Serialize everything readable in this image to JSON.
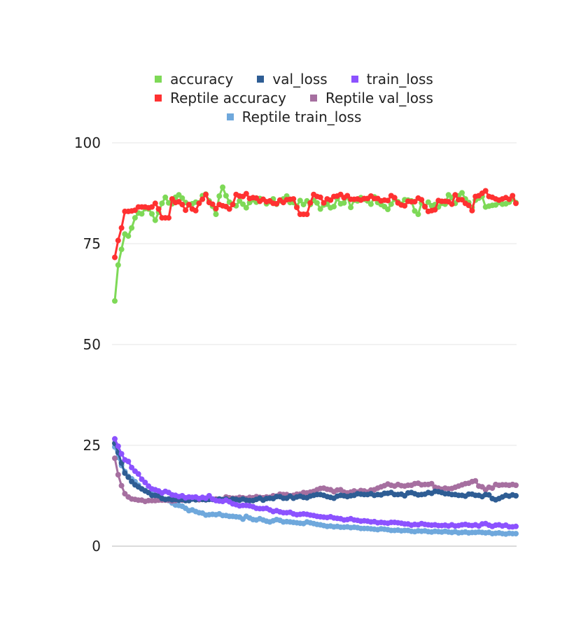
{
  "chart_data": {
    "type": "line",
    "title": "",
    "xlabel": "",
    "ylabel": "",
    "ylim": [
      0,
      100
    ],
    "yticks": [
      0,
      25,
      50,
      75,
      100
    ],
    "x_range": [
      1,
      120
    ],
    "grid": "horizontal",
    "legend": "top",
    "series": [
      {
        "name": "accuracy",
        "color": "#7ed957",
        "values": [
          60.8,
          69.7,
          73.6,
          77.4,
          76.9,
          78.9,
          81.4,
          82.6,
          82.4,
          83.7,
          83.6,
          82.4,
          80.8,
          82.8,
          85.0,
          86.5,
          85.1,
          84.9,
          86.5,
          87.1,
          86.3,
          85.2,
          84.6,
          84.9,
          85.3,
          85.1,
          86.9,
          87.3,
          85.6,
          84.3,
          82.3,
          86.8,
          89.0,
          86.9,
          85.3,
          84.8,
          84.4,
          85.6,
          84.8,
          83.9,
          85.2,
          85.9,
          85.3,
          86.2,
          86.0,
          84.9,
          85.4,
          86.1,
          84.8,
          85.6,
          86.1,
          86.8,
          85.2,
          85.2,
          84.3,
          85.7,
          84.7,
          85.6,
          84.7,
          85.7,
          85.1,
          83.6,
          84.6,
          84.8,
          83.9,
          84.2,
          86.2,
          84.9,
          85.1,
          86.7,
          84.0,
          85.8,
          85.6,
          86.4,
          86.0,
          85.6,
          84.8,
          86.6,
          85.2,
          84.7,
          84.2,
          83.5,
          84.8,
          86.0,
          85.4,
          84.8,
          85.9,
          85.8,
          85.6,
          83.1,
          82.3,
          85.1,
          84.1,
          85.3,
          84.4,
          84.7,
          84.1,
          85.0,
          84.8,
          87.1,
          86.4,
          85.0,
          86.9,
          87.6,
          86.1,
          85.2,
          84.0,
          85.8,
          86.3,
          86.7,
          84.1,
          84.3,
          84.5,
          84.6,
          85.2,
          84.8,
          84.9,
          85.3,
          86.1,
          85.2
        ]
      },
      {
        "name": "val_loss",
        "color": "#2e5d94",
        "values": [
          25.5,
          23.2,
          20.6,
          18.1,
          17.1,
          16.0,
          15.2,
          14.7,
          14.2,
          13.7,
          13.3,
          12.6,
          12.6,
          12.5,
          11.8,
          11.6,
          11.7,
          11.5,
          11.6,
          11.4,
          11.6,
          11.3,
          11.3,
          11.7,
          11.5,
          11.7,
          11.6,
          11.5,
          11.6,
          11.6,
          11.4,
          11.7,
          11.5,
          11.7,
          11.3,
          11.7,
          11.6,
          11.4,
          11.7,
          11.4,
          11.3,
          11.3,
          11.6,
          11.9,
          11.4,
          11.8,
          11.9,
          11.8,
          12.3,
          12.3,
          11.9,
          11.9,
          12.4,
          11.9,
          12.2,
          12.4,
          12.1,
          12.0,
          12.4,
          12.6,
          12.8,
          12.8,
          12.6,
          12.3,
          12.1,
          11.9,
          12.4,
          12.6,
          12.5,
          12.3,
          12.5,
          12.6,
          13.0,
          12.9,
          12.8,
          12.8,
          13.0,
          12.6,
          12.8,
          12.7,
          13.1,
          13.1,
          13.3,
          12.8,
          12.8,
          12.9,
          12.5,
          13.2,
          13.3,
          13.0,
          12.7,
          12.8,
          12.9,
          13.3,
          13.1,
          13.6,
          13.5,
          13.3,
          13.0,
          13.0,
          12.8,
          12.8,
          12.6,
          12.6,
          12.4,
          12.9,
          12.9,
          12.6,
          12.6,
          12.3,
          12.8,
          12.7,
          11.8,
          11.5,
          11.8,
          12.2,
          12.6,
          12.4,
          12.7,
          12.5
        ]
      },
      {
        "name": "train_loss",
        "color": "#8c52ff",
        "values": [
          26.6,
          24.8,
          22.9,
          21.4,
          21.0,
          19.5,
          18.6,
          17.9,
          16.6,
          15.8,
          14.9,
          14.2,
          14.0,
          13.7,
          13.2,
          13.6,
          13.3,
          12.7,
          12.6,
          12.3,
          12.5,
          12.0,
          12.2,
          12.1,
          12.2,
          11.8,
          12.1,
          11.9,
          12.5,
          11.7,
          11.3,
          11.2,
          11.1,
          11.4,
          11.0,
          10.5,
          10.3,
          10.0,
          10.1,
          10.1,
          10.0,
          9.8,
          9.4,
          9.3,
          9.3,
          9.4,
          9.0,
          8.6,
          8.8,
          8.5,
          8.3,
          8.3,
          8.4,
          8.0,
          7.8,
          7.9,
          8.0,
          7.9,
          7.7,
          7.6,
          7.4,
          7.3,
          7.2,
          7.1,
          7.3,
          7.0,
          6.9,
          6.8,
          6.5,
          6.6,
          6.8,
          6.5,
          6.4,
          6.2,
          6.3,
          6.2,
          6.0,
          6.1,
          5.8,
          5.9,
          5.8,
          5.7,
          5.9,
          5.9,
          5.8,
          5.7,
          5.5,
          5.5,
          5.2,
          5.4,
          5.3,
          5.6,
          5.4,
          5.3,
          5.2,
          5.3,
          5.1,
          5.1,
          5.2,
          5.0,
          5.3,
          5.0,
          5.1,
          5.3,
          5.4,
          5.2,
          5.1,
          5.3,
          5.0,
          5.5,
          5.6,
          5.2,
          4.9,
          5.2,
          5.3,
          5.0,
          5.2,
          4.8,
          4.8,
          4.9
        ]
      },
      {
        "name": "Reptile accuracy",
        "color": "#ff3131",
        "values": [
          71.6,
          75.8,
          78.9,
          83.0,
          83.0,
          83.1,
          83.3,
          84.1,
          84.1,
          84.1,
          83.9,
          84.1,
          85.0,
          83.6,
          81.4,
          81.4,
          81.4,
          86.1,
          85.2,
          85.4,
          84.7,
          83.3,
          84.7,
          83.6,
          83.2,
          85.0,
          86.0,
          87.2,
          85.2,
          84.8,
          83.7,
          84.7,
          84.4,
          84.2,
          83.6,
          84.7,
          87.2,
          86.8,
          86.7,
          87.4,
          86.2,
          86.4,
          86.3,
          85.5,
          86.0,
          85.4,
          85.6,
          85.0,
          84.9,
          85.8,
          85.2,
          85.9,
          86.0,
          86.1,
          84.0,
          82.3,
          82.3,
          82.3,
          85.1,
          87.2,
          86.7,
          86.5,
          85.1,
          86.1,
          85.8,
          86.7,
          86.8,
          87.2,
          86.4,
          86.9,
          86.0,
          86.0,
          86.1,
          85.8,
          86.2,
          86.2,
          86.8,
          86.2,
          86.2,
          85.6,
          85.8,
          85.7,
          86.9,
          86.4,
          85.1,
          84.6,
          84.4,
          85.5,
          85.4,
          85.4,
          86.3,
          85.9,
          84.2,
          83.0,
          83.2,
          83.4,
          85.7,
          85.5,
          85.5,
          85.4,
          84.8,
          87.1,
          85.9,
          85.9,
          85.0,
          84.5,
          83.2,
          86.7,
          86.9,
          87.5,
          88.1,
          86.7,
          86.5,
          86.1,
          85.8,
          86.1,
          86.4,
          86.0,
          86.9,
          85.0
        ]
      },
      {
        "name": "Reptile val_loss",
        "color": "#a66fa0",
        "values": [
          21.8,
          17.7,
          15.0,
          13.0,
          12.2,
          11.7,
          11.6,
          11.4,
          11.4,
          11.1,
          11.3,
          11.3,
          11.3,
          11.4,
          11.4,
          11.4,
          11.4,
          11.2,
          11.3,
          11.4,
          11.4,
          11.6,
          11.6,
          11.7,
          11.6,
          11.5,
          11.6,
          11.5,
          11.7,
          11.6,
          11.7,
          11.6,
          11.6,
          12.2,
          12.0,
          11.9,
          11.9,
          12.1,
          12.0,
          11.8,
          12.1,
          12.0,
          12.3,
          12.1,
          12.0,
          12.2,
          12.1,
          12.5,
          12.4,
          12.9,
          12.8,
          12.8,
          12.5,
          12.6,
          12.9,
          12.9,
          13.3,
          13.2,
          13.4,
          13.6,
          14.0,
          14.3,
          14.4,
          14.1,
          14.0,
          13.5,
          13.9,
          14.0,
          13.4,
          13.2,
          13.4,
          13.7,
          13.4,
          13.8,
          13.7,
          13.4,
          13.9,
          14.0,
          14.4,
          14.7,
          15.0,
          15.4,
          15.1,
          14.9,
          15.3,
          15.0,
          14.9,
          15.1,
          15.1,
          15.5,
          15.6,
          15.2,
          15.3,
          15.3,
          15.5,
          14.6,
          14.4,
          14.1,
          14.4,
          14.2,
          14.3,
          14.6,
          14.9,
          15.2,
          15.5,
          15.6,
          16.0,
          16.2,
          14.9,
          14.7,
          14.0,
          14.6,
          14.4,
          15.3,
          15.1,
          15.2,
          15.2,
          15.1,
          15.3,
          15.1
        ]
      },
      {
        "name": "Reptile train_loss",
        "color": "#6fa8dc",
        "values": [
          24.6,
          22.0,
          20.0,
          18.5,
          17.3,
          16.7,
          16.0,
          15.1,
          14.2,
          13.8,
          13.3,
          13.1,
          12.5,
          12.3,
          11.9,
          11.5,
          11.3,
          10.7,
          10.2,
          10.1,
          9.9,
          9.4,
          8.8,
          9.0,
          8.6,
          8.3,
          8.2,
          7.7,
          7.8,
          7.9,
          7.8,
          8.0,
          7.6,
          7.6,
          7.4,
          7.4,
          7.3,
          7.2,
          6.7,
          7.4,
          7.0,
          6.6,
          6.5,
          6.8,
          6.5,
          6.2,
          6.0,
          6.3,
          6.6,
          6.4,
          6.0,
          6.1,
          6.0,
          5.9,
          5.8,
          5.7,
          5.6,
          6.0,
          5.8,
          5.6,
          5.4,
          5.3,
          5.1,
          4.9,
          5.0,
          4.8,
          4.9,
          4.7,
          4.7,
          4.8,
          4.6,
          4.7,
          4.6,
          4.4,
          4.4,
          4.4,
          4.3,
          4.2,
          4.1,
          4.3,
          4.2,
          4.1,
          3.9,
          3.9,
          4.0,
          3.8,
          3.9,
          3.9,
          3.7,
          3.6,
          3.8,
          3.7,
          3.8,
          3.6,
          3.5,
          3.7,
          3.6,
          3.5,
          3.7,
          3.5,
          3.4,
          3.6,
          3.3,
          3.4,
          3.5,
          3.3,
          3.4,
          3.4,
          3.5,
          3.4,
          3.3,
          3.4,
          3.1,
          3.2,
          3.3,
          3.1,
          3.0,
          3.2,
          3.1,
          3.1
        ]
      }
    ]
  }
}
